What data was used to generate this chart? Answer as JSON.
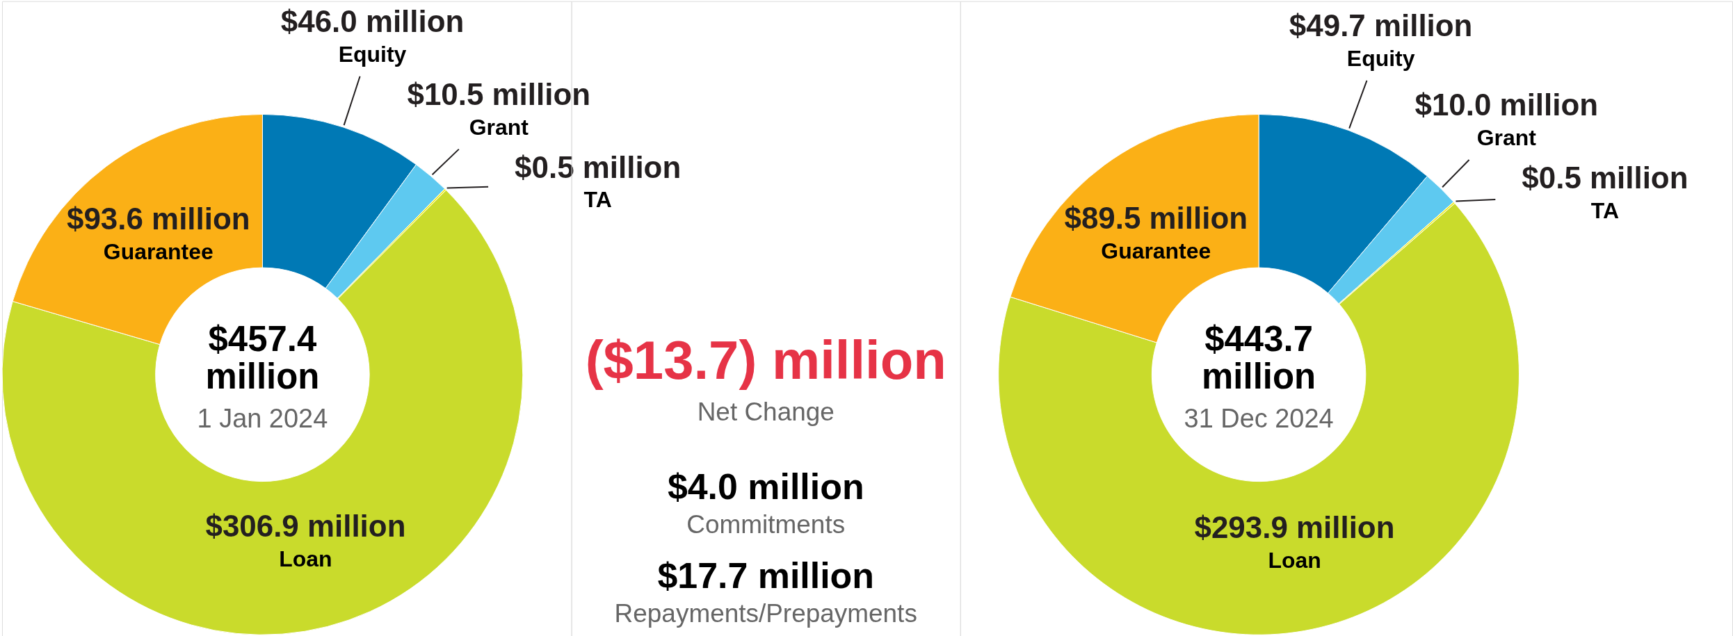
{
  "chart_data": [
    {
      "type": "donut",
      "categories": [
        "Equity",
        "Grant",
        "TA",
        "Loan",
        "Guarantee"
      ],
      "values": [
        46.0,
        10.5,
        0.5,
        306.9,
        93.6
      ],
      "colors": [
        "#0079b5",
        "#5ec9f0",
        "#f3ec19",
        "#c9db2c",
        "#fbb016"
      ],
      "value_labels": [
        "$46.0 million",
        "$10.5 million",
        "$0.5 million",
        "$306.9 million",
        "$93.6 million"
      ],
      "annotations": [
        "$457.4 million",
        "1 Jan 2024"
      ]
    },
    {
      "type": "other",
      "title": "($13.7) million",
      "subtitle": "Net Change",
      "annotations": [
        "$4.0 million",
        "Commitments",
        "$17.7 million",
        "Repayments/Prepayments"
      ]
    },
    {
      "type": "donut",
      "categories": [
        "Equity",
        "Grant",
        "TA",
        "Loan",
        "Guarantee"
      ],
      "values": [
        49.7,
        10.0,
        0.5,
        293.9,
        89.5
      ],
      "colors": [
        "#0079b5",
        "#5ec9f0",
        "#f3ec19",
        "#c9db2c",
        "#fbb016"
      ],
      "value_labels": [
        "$49.7 million",
        "$10.0 million",
        "$0.5 million",
        "$293.9 million",
        "$89.5 million"
      ],
      "annotations": [
        "$443.7 million",
        "31 Dec 2024"
      ]
    }
  ]
}
